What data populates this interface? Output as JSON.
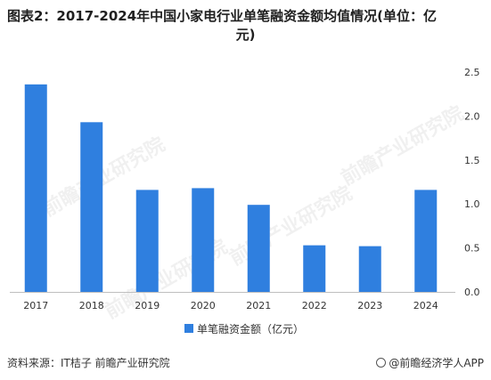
{
  "chart_data": {
    "type": "bar",
    "title_line1": "图表2：2017-2024年中国小家电行业单笔融资金额均值情况(单位：亿",
    "title_line2": "元)",
    "categories": [
      "2017",
      "2018",
      "2019",
      "2020",
      "2021",
      "2022",
      "2023",
      "2024"
    ],
    "series": [
      {
        "name": "单笔融资金额（亿元）",
        "values": [
          2.36,
          1.93,
          1.16,
          1.18,
          0.99,
          0.53,
          0.52,
          1.16
        ],
        "color": "#2f7fdf"
      }
    ],
    "y_ticks": [
      "0.0",
      "0.5",
      "1.0",
      "1.5",
      "2.0",
      "2.5"
    ],
    "ylim": [
      0,
      2.5
    ],
    "y_axis_side": "right",
    "grid": false,
    "legend_position": "bottom"
  },
  "footer": {
    "source": "资料来源：IT桔子 前瞻产业研究院",
    "brand": "@前瞻经济学人APP"
  },
  "watermark": "前瞻产业研究院"
}
